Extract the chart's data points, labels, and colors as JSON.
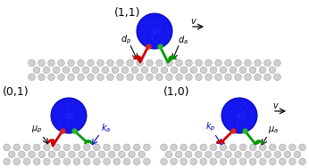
{
  "bg_color": "#ffffff",
  "surface_color": "#d0d0d0",
  "surface_outline": "#999999",
  "cargo_color": "#1515ee",
  "cargo_outline": "#0000aa",
  "leg_red": "#cc0000",
  "leg_green": "#009900",
  "dot_red": "#dd2222",
  "dot_green": "#22bb22",
  "label_11": "(1,1)",
  "label_01": "(0,1)",
  "label_10": "(1,0)"
}
